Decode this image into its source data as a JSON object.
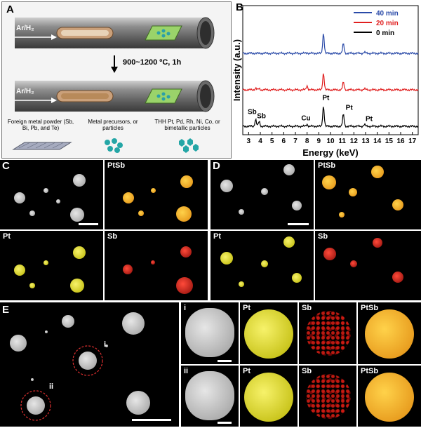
{
  "panel_a": {
    "letter": "A",
    "gas_label_top": "Ar/H₂",
    "gas_label_bottom": "Ar/H₂",
    "condition": "900~1200 ºC, 1h",
    "legend": {
      "foreign": "Foreign metal powder (Sb, Bi, Pb, and Te)",
      "precursor": "Metal precursors, or particles",
      "product": "THH Pt, Pd, Rh, Ni, Co, or bimetallic particles"
    }
  },
  "panel_b": {
    "letter": "B",
    "peak_labels": [
      "Sb",
      "Sb",
      "Cu",
      "Pt",
      "Pt",
      "Pt"
    ]
  },
  "chart_data": {
    "type": "line",
    "xlabel": "Energy (keV)",
    "ylabel": "Intensity (a.u.)",
    "xlim": [
      2.5,
      17.5
    ],
    "xticks": [
      3,
      4,
      5,
      6,
      7,
      8,
      9,
      10,
      11,
      12,
      13,
      14,
      15,
      16,
      17
    ],
    "legend_position": "top-right",
    "series": [
      {
        "name": "0 min",
        "color": "#000000",
        "offset": 0,
        "peaks": [
          [
            3.6,
            0.2
          ],
          [
            3.9,
            0.14
          ],
          [
            8.0,
            0.06
          ],
          [
            9.4,
            0.6
          ],
          [
            11.1,
            0.35
          ],
          [
            12.9,
            0.05
          ]
        ]
      },
      {
        "name": "20 min",
        "color": "#e02020",
        "offset": 1,
        "peaks": [
          [
            3.6,
            0.05
          ],
          [
            3.9,
            0.03
          ],
          [
            8.0,
            0.12
          ],
          [
            9.4,
            0.5
          ],
          [
            11.1,
            0.22
          ],
          [
            12.9,
            0.03
          ]
        ]
      },
      {
        "name": "40 min",
        "color": "#2a4aa8",
        "offset": 2,
        "peaks": [
          [
            8.0,
            0.02
          ],
          [
            9.4,
            0.6
          ],
          [
            11.1,
            0.28
          ],
          [
            12.9,
            0.03
          ]
        ]
      }
    ]
  },
  "panel_c": {
    "letter": "C",
    "labels": [
      "PtSb",
      "Pt",
      "Sb"
    ]
  },
  "panel_d": {
    "letter": "D",
    "labels": [
      "PtSb",
      "Pt",
      "Sb"
    ]
  },
  "panel_e": {
    "letter": "E",
    "marker_i": "i",
    "marker_ii": "ii",
    "rows": [
      {
        "roman": "i",
        "labels": [
          "Pt",
          "Sb",
          "PtSb"
        ]
      },
      {
        "roman": "ii",
        "labels": [
          "Pt",
          "Sb",
          "PtSb"
        ]
      }
    ]
  }
}
